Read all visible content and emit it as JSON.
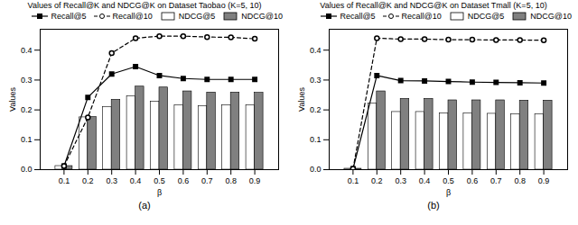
{
  "chart_data": [
    {
      "type": "bar",
      "title": "Values of Recall@K and NDCG@K on Dataset Taobao (K=5, 10)",
      "xlabel": "β",
      "ylabel": "Values",
      "x": [
        0.1,
        0.2,
        0.3,
        0.4,
        0.5,
        0.6,
        0.7,
        0.8,
        0.9
      ],
      "xlim": [
        0,
        1
      ],
      "xticks": [
        0.1,
        0.2,
        0.3,
        0.4,
        0.5,
        0.6,
        0.7,
        0.8,
        0.9
      ],
      "ylim": [
        0,
        0.47
      ],
      "yticks": [
        {
          "value": 0,
          "label": "0.0"
        },
        0.1,
        0.2,
        0.3,
        0.4
      ],
      "grid": false,
      "legend": "upper right",
      "annotations": [
        "(a)"
      ],
      "series": [
        {
          "name": "Recall@5",
          "type": "line",
          "color": "black",
          "marker": "square",
          "line_style": "solid",
          "values": [
            0.012,
            0.242,
            0.32,
            0.345,
            0.315,
            0.305,
            0.302,
            0.302,
            0.302
          ]
        },
        {
          "name": "Recall@10",
          "type": "line",
          "color": "black",
          "marker": "circle",
          "line_style": "dashed",
          "values": [
            0.012,
            0.175,
            0.39,
            0.44,
            0.447,
            0.447,
            0.444,
            0.443,
            0.438
          ]
        },
        {
          "name": "NDCG@5",
          "type": "bar",
          "color": "white",
          "values": [
            0.012,
            0.175,
            0.21,
            0.245,
            0.228,
            0.215,
            0.212,
            0.215,
            0.215
          ]
        },
        {
          "name": "NDCG@10",
          "type": "bar",
          "color": "#808080",
          "values": [
            0.012,
            0.176,
            0.234,
            0.278,
            0.275,
            0.262,
            0.258,
            0.258,
            0.257
          ]
        }
      ]
    },
    {
      "type": "bar",
      "title": "Values of Recall@K and NDCG@K on Dataset Tmall (K=5, 10)",
      "xlabel": "β",
      "ylabel": "Values",
      "x": [
        0.1,
        0.2,
        0.3,
        0.4,
        0.5,
        0.6,
        0.7,
        0.8,
        0.9
      ],
      "xlim": [
        0,
        1
      ],
      "xticks": [
        0.1,
        0.2,
        0.3,
        0.4,
        0.5,
        0.6,
        0.7,
        0.8,
        0.9
      ],
      "ylim": [
        0,
        0.47
      ],
      "yticks": [
        {
          "value": 0,
          "label": "0.0"
        },
        0.1,
        0.2,
        0.3,
        0.4
      ],
      "grid": false,
      "legend": "upper right",
      "annotations": [
        "(b)"
      ],
      "series": [
        {
          "name": "Recall@5",
          "type": "line",
          "color": "black",
          "marker": "square",
          "line_style": "solid",
          "values": [
            0.003,
            0.315,
            0.298,
            0.297,
            0.295,
            0.293,
            0.292,
            0.291,
            0.29
          ]
        },
        {
          "name": "Recall@10",
          "type": "line",
          "color": "black",
          "marker": "circle",
          "line_style": "dashed",
          "values": [
            0.003,
            0.44,
            0.437,
            0.437,
            0.435,
            0.435,
            0.434,
            0.434,
            0.433
          ]
        },
        {
          "name": "NDCG@5",
          "type": "bar",
          "color": "white",
          "values": [
            0.003,
            0.222,
            0.193,
            0.193,
            0.188,
            0.188,
            0.187,
            0.185,
            0.185
          ]
        },
        {
          "name": "NDCG@10",
          "type": "bar",
          "color": "#808080",
          "values": [
            0.003,
            0.262,
            0.237,
            0.237,
            0.232,
            0.232,
            0.232,
            0.231,
            0.231
          ]
        }
      ]
    }
  ]
}
